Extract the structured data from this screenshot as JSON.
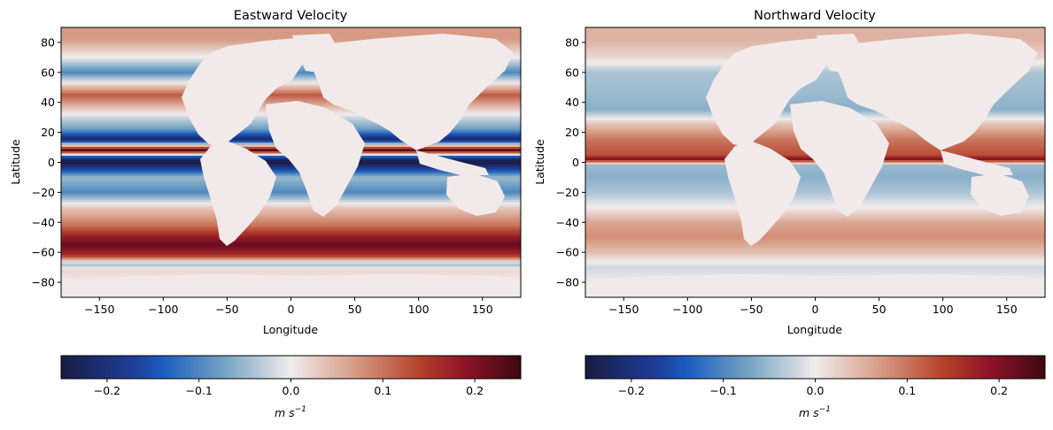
{
  "chart_data": [
    {
      "type": "heatmap",
      "title": "Eastward Velocity",
      "xlabel": "Longitude",
      "ylabel": "Latitude",
      "xlim": [
        -180,
        180
      ],
      "ylim": [
        -90,
        90
      ],
      "xticks": [
        -150,
        -100,
        -50,
        0,
        50,
        100,
        150
      ],
      "yticks": [
        -80,
        -60,
        -40,
        -20,
        0,
        20,
        40,
        60,
        80
      ],
      "colormap": "balance (diverging navy-blue-white-red-maroon)",
      "land_color": "#f2eaea",
      "colorbar": {
        "label": "m s⁻¹",
        "label_base": "m s",
        "label_exponent": "−1",
        "vmin": -0.25,
        "vmax": 0.25,
        "ticks": [
          -0.2,
          -0.1,
          0.0,
          0.1,
          0.2
        ],
        "tick_labels": [
          "−0.2",
          "−0.1",
          "0.0",
          "0.1",
          "0.2"
        ],
        "orientation": "horizontal",
        "placement": "bottom"
      },
      "field_bands": [
        {
          "lat": 82,
          "value": 0.07
        },
        {
          "lat": 70,
          "value": 0.0
        },
        {
          "lat": 60,
          "value": -0.1
        },
        {
          "lat": 45,
          "value": 0.12
        },
        {
          "lat": 30,
          "value": -0.02
        },
        {
          "lat": 22,
          "value": -0.08
        },
        {
          "lat": 15,
          "value": -0.22
        },
        {
          "lat": 8,
          "value": 0.24
        },
        {
          "lat": 3,
          "value": -0.2
        },
        {
          "lat": 0,
          "value": -0.25
        },
        {
          "lat": -3,
          "value": -0.2
        },
        {
          "lat": -10,
          "value": -0.05
        },
        {
          "lat": -20,
          "value": -0.1
        },
        {
          "lat": -30,
          "value": 0.03
        },
        {
          "lat": -42,
          "value": 0.1
        },
        {
          "lat": -50,
          "value": 0.18
        },
        {
          "lat": -55,
          "value": 0.22
        },
        {
          "lat": -62,
          "value": 0.16
        },
        {
          "lat": -68,
          "value": -0.05
        },
        {
          "lat": -72,
          "value": 0.02
        },
        {
          "lat": -80,
          "value": 0.0
        }
      ]
    },
    {
      "type": "heatmap",
      "title": "Northward Velocity",
      "xlabel": "Longitude",
      "ylabel": "Latitude",
      "xlim": [
        -180,
        180
      ],
      "ylim": [
        -90,
        90
      ],
      "xticks": [
        -150,
        -100,
        -50,
        0,
        50,
        100,
        150
      ],
      "yticks": [
        -80,
        -60,
        -40,
        -20,
        0,
        20,
        40,
        60,
        80
      ],
      "colormap": "balance (diverging navy-blue-white-red-maroon)",
      "land_color": "#f2eaea",
      "colorbar": {
        "label": "m s⁻¹",
        "label_base": "m s",
        "label_exponent": "−1",
        "vmin": -0.25,
        "vmax": 0.25,
        "ticks": [
          -0.2,
          -0.1,
          0.0,
          0.1,
          0.2
        ],
        "tick_labels": [
          "−0.2",
          "−0.1",
          "0.0",
          "0.1",
          "0.2"
        ],
        "orientation": "horizontal",
        "placement": "bottom"
      },
      "field_bands": [
        {
          "lat": 82,
          "value": 0.05
        },
        {
          "lat": 70,
          "value": 0.02
        },
        {
          "lat": 60,
          "value": -0.04
        },
        {
          "lat": 45,
          "value": -0.05
        },
        {
          "lat": 35,
          "value": -0.06
        },
        {
          "lat": 25,
          "value": 0.04
        },
        {
          "lat": 15,
          "value": 0.1
        },
        {
          "lat": 5,
          "value": 0.13
        },
        {
          "lat": 2,
          "value": 0.2
        },
        {
          "lat": -2,
          "value": -0.05
        },
        {
          "lat": -10,
          "value": -0.06
        },
        {
          "lat": -20,
          "value": -0.04
        },
        {
          "lat": -30,
          "value": 0.0
        },
        {
          "lat": -40,
          "value": 0.06
        },
        {
          "lat": -50,
          "value": 0.08
        },
        {
          "lat": -60,
          "value": 0.04
        },
        {
          "lat": -70,
          "value": -0.02
        },
        {
          "lat": -80,
          "value": 0.0
        }
      ]
    }
  ]
}
